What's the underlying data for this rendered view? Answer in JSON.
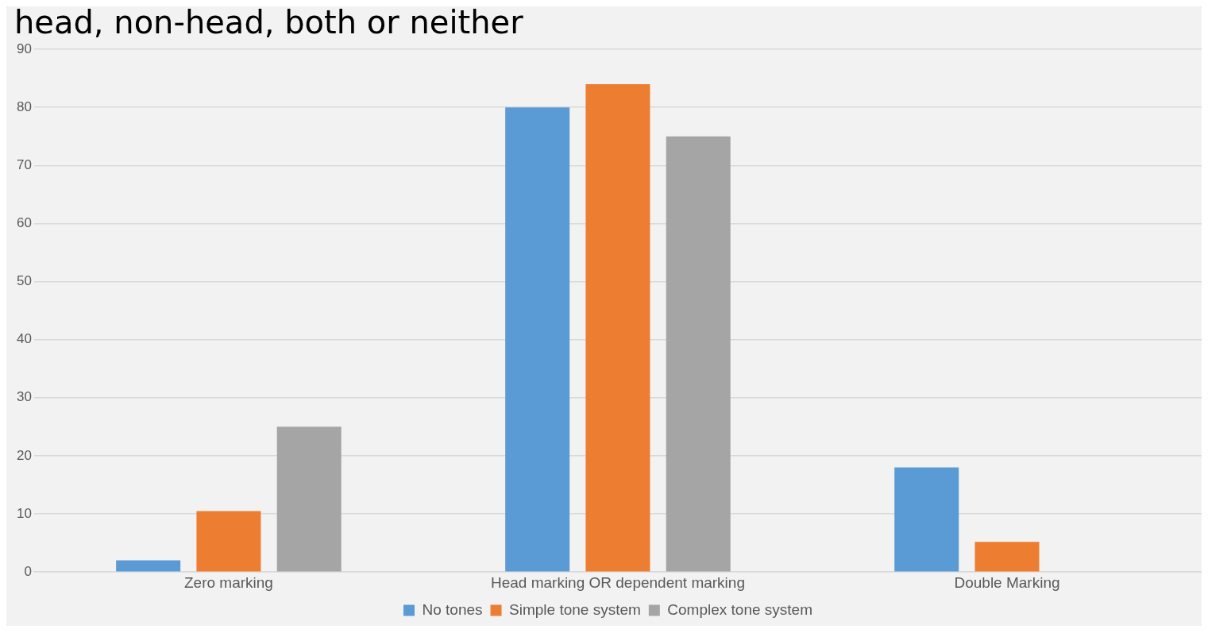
{
  "chart_data": {
    "type": "bar",
    "title": "head, non-head, both or neither",
    "categories": [
      "Zero marking",
      "Head marking OR dependent marking",
      "Double Marking"
    ],
    "series": [
      {
        "name": "No tones",
        "color": "#5b9bd5",
        "values": [
          2,
          80,
          18
        ]
      },
      {
        "name": "Simple tone system",
        "color": "#ed7d31",
        "values": [
          10.5,
          84,
          5.2
        ]
      },
      {
        "name": "Complex tone system",
        "color": "#a5a5a5",
        "values": [
          25,
          75,
          0
        ]
      }
    ],
    "ylim": [
      0,
      90
    ],
    "yticks": [
      0,
      10,
      20,
      30,
      40,
      50,
      60,
      70,
      80,
      90
    ],
    "grid": "y",
    "legend": "bottom"
  }
}
